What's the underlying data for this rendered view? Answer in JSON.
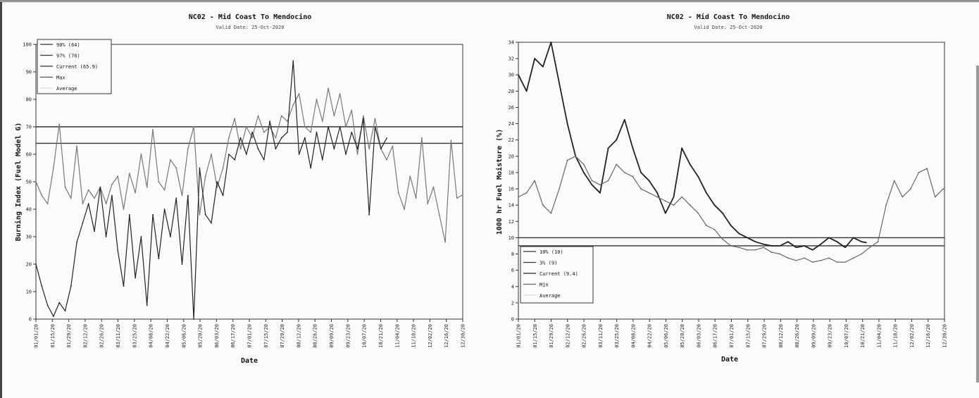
{
  "chart_data": [
    {
      "type": "line",
      "title": "NC02 - Mid Coast To Mendocino",
      "subtitle": "Valid Date: 25-Oct-2020",
      "xlabel": "Date",
      "ylabel": "Burning Index (Fuel Model G)",
      "ylim": [
        0,
        100
      ],
      "yticks": [
        0,
        10,
        20,
        30,
        40,
        50,
        60,
        70,
        80,
        90,
        100
      ],
      "xlim": [
        "2020-01-01",
        "2020-12-31"
      ],
      "x_tick_labels": [
        "01/01/20",
        "01/15/20",
        "01/29/20",
        "02/12/20",
        "02/26/20",
        "03/11/20",
        "03/25/20",
        "04/08/20",
        "04/22/20",
        "05/06/20",
        "05/20/20",
        "06/03/20",
        "06/17/20",
        "07/01/20",
        "07/15/20",
        "07/29/20",
        "08/12/20",
        "08/26/20",
        "09/09/20",
        "09/23/20",
        "10/07/20",
        "10/21/20",
        "11/04/20",
        "11/18/20",
        "12/02/20",
        "12/16/20",
        "12/30/20"
      ],
      "legend_position": "top-left",
      "legend": [
        {
          "label": "90% (64)",
          "color": "#333333"
        },
        {
          "label": "97% (70)",
          "color": "#333333"
        },
        {
          "label": "Current (65.9)",
          "color": "#333333"
        },
        {
          "label": "Max",
          "color": "#555555"
        },
        {
          "label": "Average",
          "color": "#ffffff"
        }
      ],
      "thresholds": [
        {
          "name": "97% (70)",
          "value": 70
        },
        {
          "name": "90% (64)",
          "value": 64
        }
      ],
      "series": [
        {
          "name": "Max",
          "color": "#777777",
          "x": [
            "2020-01-01",
            "2020-01-06",
            "2020-01-11",
            "2020-01-16",
            "2020-01-21",
            "2020-01-26",
            "2020-01-31",
            "2020-02-05",
            "2020-02-10",
            "2020-02-15",
            "2020-02-20",
            "2020-02-25",
            "2020-03-01",
            "2020-03-06",
            "2020-03-11",
            "2020-03-16",
            "2020-03-21",
            "2020-03-26",
            "2020-03-31",
            "2020-04-05",
            "2020-04-10",
            "2020-04-15",
            "2020-04-20",
            "2020-04-25",
            "2020-04-30",
            "2020-05-05",
            "2020-05-10",
            "2020-05-15",
            "2020-05-20",
            "2020-05-25",
            "2020-05-30",
            "2020-06-04",
            "2020-06-09",
            "2020-06-14",
            "2020-06-19",
            "2020-06-24",
            "2020-06-29",
            "2020-07-04",
            "2020-07-09",
            "2020-07-14",
            "2020-07-19",
            "2020-07-24",
            "2020-07-29",
            "2020-08-03",
            "2020-08-08",
            "2020-08-13",
            "2020-08-18",
            "2020-08-23",
            "2020-08-28",
            "2020-09-02",
            "2020-09-07",
            "2020-09-12",
            "2020-09-17",
            "2020-09-22",
            "2020-09-27",
            "2020-10-02",
            "2020-10-07",
            "2020-10-12",
            "2020-10-17",
            "2020-10-22",
            "2020-10-27",
            "2020-11-01",
            "2020-11-06",
            "2020-11-11",
            "2020-11-16",
            "2020-11-21",
            "2020-11-26",
            "2020-12-01",
            "2020-12-06",
            "2020-12-11",
            "2020-12-16",
            "2020-12-21",
            "2020-12-26",
            "2020-12-30"
          ],
          "values": [
            50,
            45,
            42,
            55,
            71,
            48,
            44,
            63,
            42,
            47,
            44,
            48,
            42,
            49,
            52,
            40,
            53,
            46,
            60,
            48,
            69,
            50,
            47,
            58,
            55,
            45,
            62,
            70,
            38,
            52,
            60,
            48,
            55,
            66,
            73,
            62,
            70,
            66,
            74,
            68,
            70,
            66,
            74,
            72,
            78,
            82,
            70,
            68,
            80,
            72,
            84,
            74,
            82,
            70,
            76,
            60,
            74,
            62,
            73,
            62,
            58,
            63,
            46,
            40,
            52,
            44,
            66,
            42,
            48,
            38,
            28,
            65,
            44,
            45
          ]
        },
        {
          "name": "Current (65.9)",
          "color": "#222222",
          "x": [
            "2020-01-01",
            "2020-01-06",
            "2020-01-11",
            "2020-01-16",
            "2020-01-21",
            "2020-01-26",
            "2020-01-31",
            "2020-02-05",
            "2020-02-10",
            "2020-02-15",
            "2020-02-20",
            "2020-02-25",
            "2020-03-01",
            "2020-03-06",
            "2020-03-11",
            "2020-03-16",
            "2020-03-21",
            "2020-03-26",
            "2020-03-31",
            "2020-04-05",
            "2020-04-10",
            "2020-04-15",
            "2020-04-20",
            "2020-04-25",
            "2020-04-30",
            "2020-05-05",
            "2020-05-10",
            "2020-05-15",
            "2020-05-20",
            "2020-05-25",
            "2020-05-30",
            "2020-06-04",
            "2020-06-09",
            "2020-06-14",
            "2020-06-19",
            "2020-06-24",
            "2020-06-29",
            "2020-07-04",
            "2020-07-09",
            "2020-07-14",
            "2020-07-19",
            "2020-07-24",
            "2020-07-29",
            "2020-08-03",
            "2020-08-08",
            "2020-08-13",
            "2020-08-18",
            "2020-08-23",
            "2020-08-28",
            "2020-09-02",
            "2020-09-07",
            "2020-09-12",
            "2020-09-17",
            "2020-09-22",
            "2020-09-27",
            "2020-10-02",
            "2020-10-07",
            "2020-10-12",
            "2020-10-17",
            "2020-10-22",
            "2020-10-27"
          ],
          "values": [
            20,
            12,
            5,
            1,
            6,
            3,
            12,
            28,
            35,
            42,
            32,
            48,
            30,
            45,
            25,
            12,
            38,
            15,
            30,
            5,
            38,
            22,
            40,
            30,
            44,
            20,
            45,
            0,
            55,
            38,
            35,
            50,
            45,
            60,
            58,
            66,
            60,
            68,
            62,
            58,
            72,
            62,
            66,
            68,
            94,
            60,
            66,
            55,
            68,
            58,
            70,
            62,
            70,
            60,
            68,
            62,
            73,
            38,
            70,
            62,
            65.9
          ]
        }
      ]
    },
    {
      "type": "line",
      "title": "NC02 - Mid Coast To Mendocino",
      "subtitle": "Valid Date: 25-Oct-2020",
      "xlabel": "Date",
      "ylabel": "1000 hr Fuel Moisture (%)",
      "ylim": [
        0,
        34
      ],
      "yticks": [
        0,
        2,
        4,
        6,
        8,
        10,
        12,
        14,
        16,
        18,
        20,
        22,
        24,
        26,
        28,
        30,
        32,
        34
      ],
      "xlim": [
        "2020-01-01",
        "2020-12-31"
      ],
      "x_tick_labels": [
        "01/01/20",
        "01/15/20",
        "01/29/20",
        "02/12/20",
        "02/26/20",
        "03/11/20",
        "03/25/20",
        "04/08/20",
        "04/22/20",
        "05/06/20",
        "05/20/20",
        "06/03/20",
        "06/17/20",
        "07/01/20",
        "07/15/20",
        "07/29/20",
        "08/12/20",
        "08/26/20",
        "09/09/20",
        "09/23/20",
        "10/07/20",
        "10/21/20",
        "11/04/20",
        "11/18/20",
        "12/02/20",
        "12/16/20",
        "12/30/20"
      ],
      "legend_position": "bottom-left",
      "legend": [
        {
          "label": "10% (10)",
          "color": "#333333"
        },
        {
          "label": "3% (9)",
          "color": "#333333"
        },
        {
          "label": "Current (9.4)",
          "color": "#222222"
        },
        {
          "label": "Min",
          "color": "#666666"
        },
        {
          "label": "Average",
          "color": "#ffffff"
        }
      ],
      "thresholds": [
        {
          "name": "10% (10)",
          "value": 10
        },
        {
          "name": "3% (9)",
          "value": 9
        }
      ],
      "series": [
        {
          "name": "Current (9.4)",
          "color": "#222222",
          "x": [
            "2020-01-01",
            "2020-01-08",
            "2020-01-15",
            "2020-01-22",
            "2020-01-29",
            "2020-02-05",
            "2020-02-12",
            "2020-02-19",
            "2020-02-26",
            "2020-03-04",
            "2020-03-11",
            "2020-03-18",
            "2020-03-25",
            "2020-04-01",
            "2020-04-08",
            "2020-04-15",
            "2020-04-22",
            "2020-04-29",
            "2020-05-06",
            "2020-05-13",
            "2020-05-20",
            "2020-05-27",
            "2020-06-03",
            "2020-06-10",
            "2020-06-17",
            "2020-06-24",
            "2020-07-01",
            "2020-07-08",
            "2020-07-15",
            "2020-07-22",
            "2020-07-29",
            "2020-08-05",
            "2020-08-12",
            "2020-08-19",
            "2020-08-26",
            "2020-09-02",
            "2020-09-09",
            "2020-09-16",
            "2020-09-23",
            "2020-09-30",
            "2020-10-07",
            "2020-10-14",
            "2020-10-21",
            "2020-10-25"
          ],
          "values": [
            30,
            28,
            32,
            31,
            34,
            29,
            24,
            20,
            18,
            16.5,
            15.5,
            21,
            22,
            24.5,
            21,
            18,
            17,
            15.5,
            13,
            15,
            21,
            19,
            17.5,
            15.5,
            14,
            13,
            11.5,
            10.5,
            10,
            9.5,
            9.2,
            9,
            9,
            9.5,
            8.8,
            9,
            8.5,
            9.2,
            10,
            9.5,
            8.8,
            10,
            9.5,
            9.4
          ]
        },
        {
          "name": "Min",
          "color": "#666666",
          "x": [
            "2020-01-01",
            "2020-01-08",
            "2020-01-15",
            "2020-01-22",
            "2020-01-29",
            "2020-02-05",
            "2020-02-12",
            "2020-02-19",
            "2020-02-26",
            "2020-03-04",
            "2020-03-11",
            "2020-03-18",
            "2020-03-25",
            "2020-04-01",
            "2020-04-08",
            "2020-04-15",
            "2020-04-22",
            "2020-04-29",
            "2020-05-06",
            "2020-05-13",
            "2020-05-20",
            "2020-05-27",
            "2020-06-03",
            "2020-06-10",
            "2020-06-17",
            "2020-06-24",
            "2020-07-01",
            "2020-07-08",
            "2020-07-15",
            "2020-07-22",
            "2020-07-29",
            "2020-08-05",
            "2020-08-12",
            "2020-08-19",
            "2020-08-26",
            "2020-09-02",
            "2020-09-09",
            "2020-09-16",
            "2020-09-23",
            "2020-09-30",
            "2020-10-07",
            "2020-10-14",
            "2020-10-21",
            "2020-10-28",
            "2020-11-04",
            "2020-11-11",
            "2020-11-18",
            "2020-11-25",
            "2020-12-02",
            "2020-12-09",
            "2020-12-16",
            "2020-12-23",
            "2020-12-30"
          ],
          "values": [
            15,
            15.5,
            17,
            14,
            13,
            16,
            19.5,
            20,
            19,
            17,
            16.5,
            17,
            19,
            18,
            17.5,
            16,
            15.5,
            15,
            14.5,
            14,
            15,
            14,
            13,
            11.5,
            11,
            9.8,
            9,
            8.8,
            8.5,
            8.5,
            8.8,
            8.2,
            8,
            7.5,
            7.2,
            7.5,
            7,
            7.2,
            7.5,
            7,
            7,
            7.5,
            8,
            8.8,
            9.5,
            14,
            17,
            15,
            16,
            18,
            18.5,
            15,
            16
          ]
        }
      ]
    }
  ]
}
